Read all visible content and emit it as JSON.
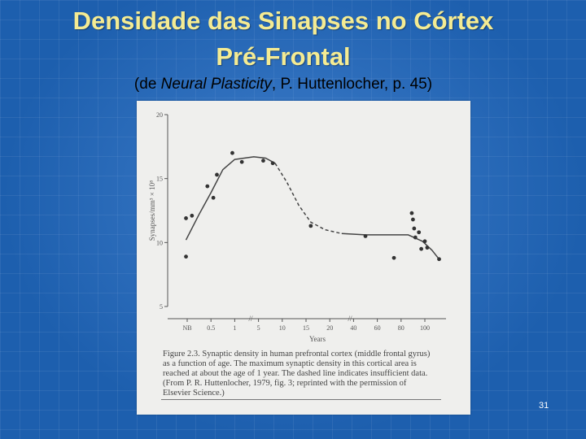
{
  "slide": {
    "title_line1": "Densidade das Sinapses no Córtex",
    "title_line2": "Pré-Frontal",
    "subtitle_prefix": "(de ",
    "subtitle_italic": "Neural Plasticity",
    "subtitle_suffix": ", P. Huttenlocher, p. 45)",
    "number": "31"
  },
  "figure": {
    "caption": "Figure 2.3. Synaptic density in human prefrontal cortex (middle frontal gyrus) as a function of age. The maximum synaptic density in this cortical area is reached at about the age of 1 year. The dashed line indicates insufficient data. (From P. R. Huttenlocher, 1979, fig. 3; reprinted with the permission of Elsevier Science.)"
  },
  "chart_data": {
    "type": "scatter",
    "xlabel": "Years",
    "ylabel": "Synapses/mm³ × 10⁸",
    "x_categories": [
      "NB",
      "0.5",
      "1",
      "5",
      "10",
      "15",
      "20",
      "40",
      "60",
      "80",
      "100"
    ],
    "y_ticks": [
      "20",
      "15",
      "10",
      "5"
    ],
    "ylim": [
      5,
      20
    ],
    "points": [
      {
        "x": -0.05,
        "y": 8.9
      },
      {
        "x": -0.05,
        "y": 11.9
      },
      {
        "x": 0.2,
        "y": 12.1
      },
      {
        "x": 0.85,
        "y": 14.4
      },
      {
        "x": 1.1,
        "y": 13.5
      },
      {
        "x": 1.25,
        "y": 15.3
      },
      {
        "x": 1.9,
        "y": 17.0
      },
      {
        "x": 2.3,
        "y": 16.3
      },
      {
        "x": 3.2,
        "y": 16.4
      },
      {
        "x": 3.6,
        "y": 16.2
      },
      {
        "x": 5.2,
        "y": 11.3
      },
      {
        "x": 7.5,
        "y": 10.5
      },
      {
        "x": 8.7,
        "y": 8.8
      },
      {
        "x": 9.45,
        "y": 12.3
      },
      {
        "x": 9.5,
        "y": 11.8
      },
      {
        "x": 9.55,
        "y": 11.1
      },
      {
        "x": 9.6,
        "y": 10.4
      },
      {
        "x": 9.75,
        "y": 10.8
      },
      {
        "x": 9.85,
        "y": 9.5
      },
      {
        "x": 10.0,
        "y": 10.1
      },
      {
        "x": 10.1,
        "y": 9.6
      },
      {
        "x": 10.6,
        "y": 8.7
      }
    ],
    "curve_solid_1": [
      [
        -0.05,
        10.2
      ],
      [
        0.5,
        12.2
      ],
      [
        1.0,
        13.9
      ],
      [
        1.5,
        15.7
      ],
      [
        2.0,
        16.5
      ],
      [
        2.8,
        16.7
      ],
      [
        3.3,
        16.6
      ],
      [
        3.7,
        16.2
      ]
    ],
    "curve_dashed": [
      [
        3.7,
        16.2
      ],
      [
        4.2,
        14.7
      ],
      [
        4.7,
        12.9
      ],
      [
        5.2,
        11.6
      ],
      [
        5.8,
        11.0
      ],
      [
        6.5,
        10.7
      ]
    ],
    "curve_solid_2": [
      [
        6.5,
        10.7
      ],
      [
        7.5,
        10.6
      ],
      [
        8.5,
        10.6
      ],
      [
        9.3,
        10.6
      ],
      [
        9.9,
        10.1
      ],
      [
        10.3,
        9.4
      ],
      [
        10.6,
        8.7
      ]
    ],
    "grid": false
  }
}
